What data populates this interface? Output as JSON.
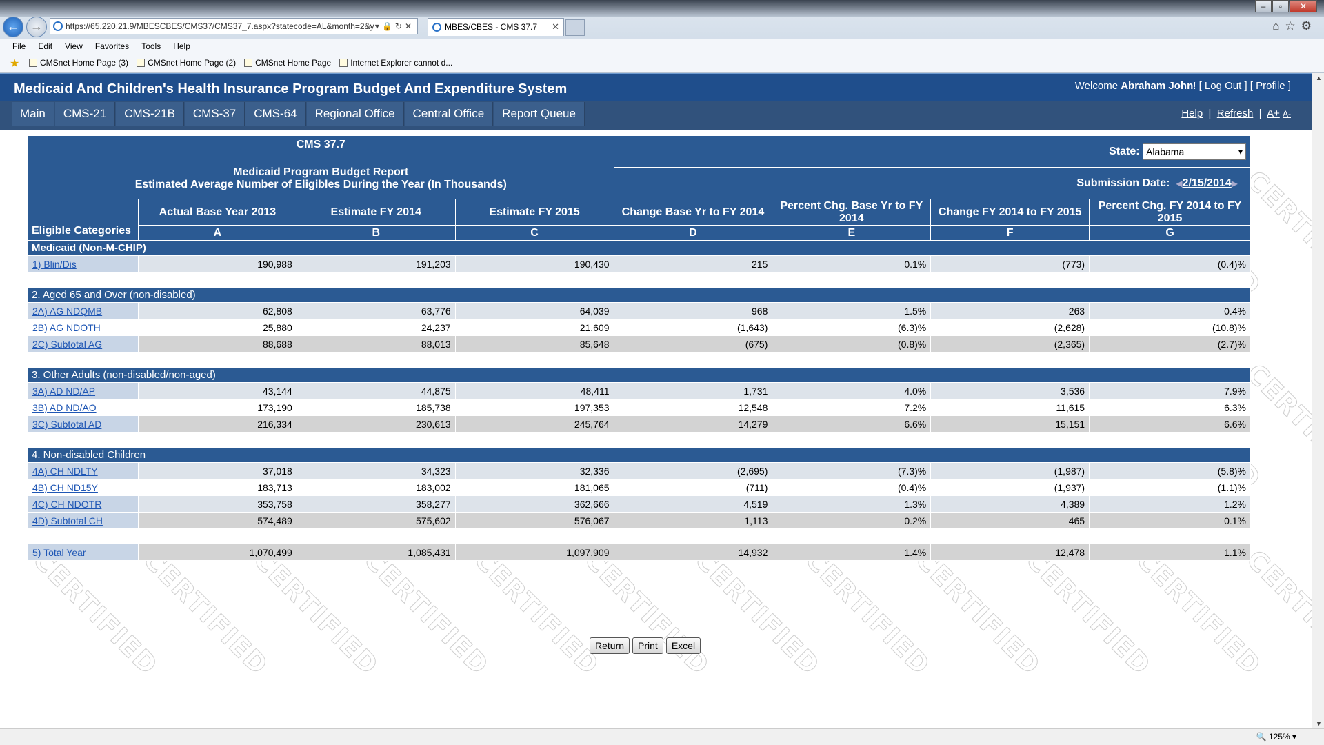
{
  "browser": {
    "address": "https://65.220.21.9/MBESCBES/CMS37/CMS37_7.aspx?statecode=AL&month=2&y",
    "tab_title": "MBES/CBES - CMS 37.7",
    "menu": [
      "File",
      "Edit",
      "View",
      "Favorites",
      "Tools",
      "Help"
    ],
    "favorites": [
      "CMSnet Home Page (3)",
      "CMSnet Home Page (2)",
      "CMSnet Home Page",
      "Internet Explorer cannot d..."
    ],
    "zoom": "125%"
  },
  "app": {
    "title": "Medicaid And Children's Health Insurance Program Budget And Expenditure System",
    "welcome_prefix": "Welcome ",
    "user": "Abraham John",
    "logout": "Log Out",
    "profile": "Profile",
    "nav": [
      "Main",
      "CMS-21",
      "CMS-21B",
      "CMS-37",
      "CMS-64",
      "Regional Office",
      "Central Office",
      "Report Queue"
    ],
    "help": "Help",
    "refresh": "Refresh",
    "font_up": "A+",
    "font_down": "A-",
    "watermark": "CERTIFIED"
  },
  "report": {
    "form": "CMS 37.7",
    "title": "Medicaid Program Budget Report",
    "subtitle": "Estimated Average Number of Eligibles During the Year (In Thousands)",
    "state_label": "State:",
    "state": "Alabama",
    "submission_label": "Submission Date:",
    "submission_date": "2/15/2014",
    "category_header": "Eligible Categories",
    "columns": [
      {
        "title": "Actual Base Year 2013",
        "letter": "A"
      },
      {
        "title": "Estimate FY 2014",
        "letter": "B"
      },
      {
        "title": "Estimate FY 2015",
        "letter": "C"
      },
      {
        "title": "Change Base Yr to FY 2014",
        "letter": "D"
      },
      {
        "title": "Percent Chg. Base Yr to FY 2014",
        "letter": "E"
      },
      {
        "title": "Change FY 2014 to FY 2015",
        "letter": "F"
      },
      {
        "title": "Percent Chg. FY 2014 to FY 2015",
        "letter": "G"
      }
    ],
    "sections": [
      {
        "title": "Medicaid (Non-M-CHIP)",
        "bold": true,
        "rows": [
          {
            "label": "1) Blin/Dis",
            "style": "alt",
            "values": [
              "190,988",
              "191,203",
              "190,430",
              "215",
              "0.1%",
              "(773)",
              "(0.4)%"
            ]
          }
        ]
      },
      {
        "title": "2. Aged 65 and Over (non-disabled)",
        "bold": false,
        "rows": [
          {
            "label": "2A) AG NDQMB",
            "style": "alt",
            "values": [
              "62,808",
              "63,776",
              "64,039",
              "968",
              "1.5%",
              "263",
              "0.4%"
            ]
          },
          {
            "label": "2B) AG NDOTH",
            "style": "plain",
            "values": [
              "25,880",
              "24,237",
              "21,609",
              "(1,643)",
              "(6.3)%",
              "(2,628)",
              "(10.8)%"
            ]
          },
          {
            "label": "2C) Subtotal AG",
            "style": "sub",
            "values": [
              "88,688",
              "88,013",
              "85,648",
              "(675)",
              "(0.8)%",
              "(2,365)",
              "(2.7)%"
            ]
          }
        ]
      },
      {
        "title": "3. Other Adults (non-disabled/non-aged)",
        "bold": false,
        "rows": [
          {
            "label": "3A) AD ND/AP",
            "style": "alt",
            "values": [
              "43,144",
              "44,875",
              "48,411",
              "1,731",
              "4.0%",
              "3,536",
              "7.9%"
            ]
          },
          {
            "label": "3B) AD ND/AO",
            "style": "plain",
            "values": [
              "173,190",
              "185,738",
              "197,353",
              "12,548",
              "7.2%",
              "11,615",
              "6.3%"
            ]
          },
          {
            "label": "3C) Subtotal AD",
            "style": "sub",
            "values": [
              "216,334",
              "230,613",
              "245,764",
              "14,279",
              "6.6%",
              "15,151",
              "6.6%"
            ]
          }
        ]
      },
      {
        "title": "4. Non-disabled Children",
        "bold": false,
        "rows": [
          {
            "label": "4A) CH NDLTY",
            "style": "alt",
            "values": [
              "37,018",
              "34,323",
              "32,336",
              "(2,695)",
              "(7.3)%",
              "(1,987)",
              "(5.8)%"
            ]
          },
          {
            "label": "4B) CH ND15Y",
            "style": "plain",
            "values": [
              "183,713",
              "183,002",
              "181,065",
              "(711)",
              "(0.4)%",
              "(1,937)",
              "(1.1)%"
            ]
          },
          {
            "label": "4C) CH NDOTR",
            "style": "alt",
            "values": [
              "353,758",
              "358,277",
              "362,666",
              "4,519",
              "1.3%",
              "4,389",
              "1.2%"
            ]
          },
          {
            "label": "4D) Subtotal CH",
            "style": "sub",
            "values": [
              "574,489",
              "575,602",
              "576,067",
              "1,113",
              "0.2%",
              "465",
              "0.1%"
            ]
          }
        ]
      }
    ],
    "total": {
      "label": "5) Total Year",
      "style": "sub",
      "values": [
        "1,070,499",
        "1,085,431",
        "1,097,909",
        "14,932",
        "1.4%",
        "12,478",
        "1.1%"
      ]
    },
    "buttons": [
      "Return",
      "Print",
      "Excel"
    ]
  }
}
